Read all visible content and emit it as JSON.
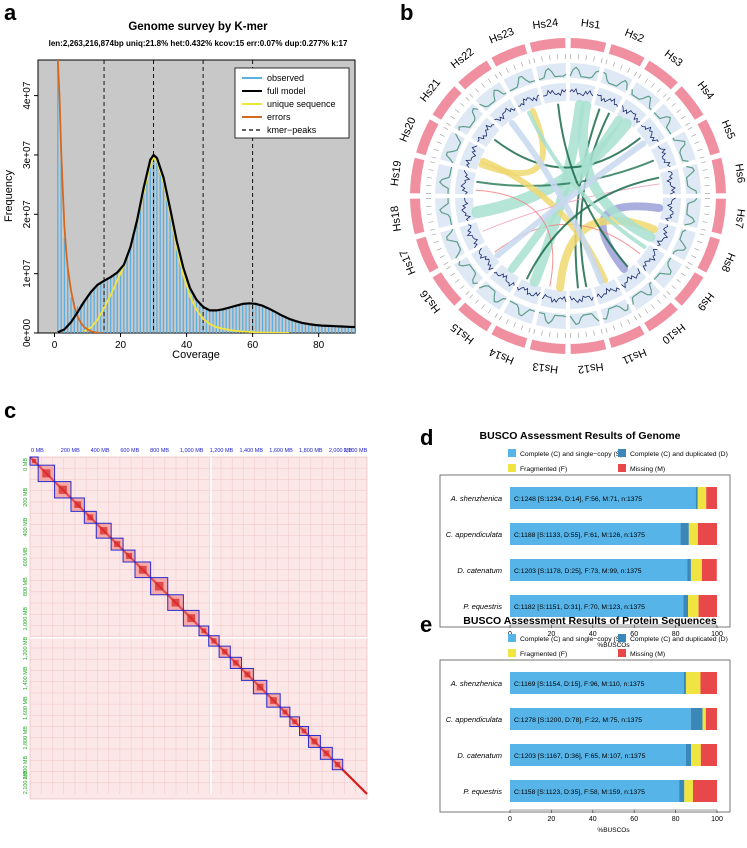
{
  "panel_labels": [
    "a",
    "b",
    "c",
    "d",
    "e"
  ],
  "colors": {
    "observed": "#5aaee0",
    "full_model": "#000000",
    "unique": "#f2e53a",
    "errors": "#d2691e",
    "plot_bg": "#c8c8c8",
    "busco_s": "#56b4e9",
    "busco_d": "#3a87b8",
    "busco_f": "#f0e442",
    "busco_m": "#e8484a",
    "ideogram": "#f08fa0",
    "track": "#dfe9f5",
    "hic_blue": "#2a2acc",
    "hic_axis_top": "#2222cc",
    "hic_axis_left": "#22aa22"
  },
  "chart_data": [
    {
      "id": "kmer",
      "type": "line",
      "title": "Genome survey by K-mer",
      "subtitle": "len:2,263,216,874bp uniq:21.8%  het:0.432% kcov:15 err:0.07%  dup:0.277%  k:17",
      "xlabel": "Coverage",
      "ylabel": "Frequency",
      "xlim": [
        -5,
        91
      ],
      "ylim": [
        0,
        46000000.0
      ],
      "xticks": [
        0,
        20,
        40,
        60,
        80
      ],
      "yticks": [
        0,
        10000000.0,
        20000000.0,
        30000000.0,
        40000000.0
      ],
      "ytick_labels": [
        "0e+00",
        "1e+07",
        "2e+07",
        "3e+07",
        "4e+07"
      ],
      "legend_position": "top-right",
      "legend": [
        "observed",
        "full model",
        "unique sequence",
        "errors",
        "kmer−peaks"
      ],
      "kmer_peaks": [
        15,
        30,
        45,
        60
      ],
      "series": [
        {
          "name": "full model",
          "x": [
            1,
            3,
            5,
            7,
            9,
            11,
            13,
            15,
            17,
            19,
            21,
            23,
            25,
            27,
            29,
            30,
            31,
            33,
            35,
            37,
            39,
            41,
            43,
            45,
            47,
            49,
            51,
            53,
            55,
            57,
            59,
            61,
            63,
            65,
            67,
            69,
            71,
            73,
            75,
            77,
            79,
            81,
            83,
            85,
            87,
            89,
            91
          ],
          "values": [
            100000.0,
            600000.0,
            1800000.0,
            3500000.0,
            5300000.0,
            6900000.0,
            8100000.0,
            8800000.0,
            9400000.0,
            10200000.0,
            11500000.0,
            14500000.0,
            19000000.0,
            24500000.0,
            29200000.0,
            30000000.0,
            29500000.0,
            26200000.0,
            21000000.0,
            15500000.0,
            11000000.0,
            7600000.0,
            5600000.0,
            4400000.0,
            3800000.0,
            3800000.0,
            4000000.0,
            4300000.0,
            4600000.0,
            4900000.0,
            5000000.0,
            4900000.0,
            4600000.0,
            4100000.0,
            3500000.0,
            2900000.0,
            2400000.0,
            2000000.0,
            1700000.0,
            1500000.0,
            1350000.0,
            1250000.0,
            1200000.0,
            1150000.0,
            1100000.0,
            1050000.0,
            1000000.0
          ]
        },
        {
          "name": "unique sequence",
          "x": [
            9,
            11,
            13,
            15,
            17,
            19,
            21,
            23,
            25,
            27,
            29,
            30,
            31,
            33,
            35,
            37,
            39,
            41,
            43,
            45,
            47,
            49,
            51,
            53,
            55,
            57,
            59,
            61,
            63,
            65,
            67,
            69,
            71
          ],
          "values": [
            300000.0,
            900000.0,
            2200000.0,
            4200000.0,
            6400000.0,
            8800000.0,
            11300000.0,
            14600000.0,
            18800000.0,
            23800000.0,
            28400000.0,
            29500000.0,
            29000000.0,
            25500000.0,
            20200000.0,
            14500000.0,
            9800000.0,
            6300000.0,
            3900000.0,
            2400000.0,
            1500000.0,
            1000000.0,
            700000.0,
            500000.0,
            350000.0,
            250000.0,
            180000.0,
            120000.0,
            80000.0,
            50000.0,
            30000.0,
            20000.0,
            10000.0
          ]
        },
        {
          "name": "errors",
          "x": [
            1,
            1.5,
            2,
            2.5,
            3,
            3.5,
            4,
            5,
            6,
            7,
            8,
            9,
            10,
            11,
            12,
            13,
            14
          ],
          "values": [
            46000000.0,
            40000000.0,
            31000000.0,
            24000000.0,
            18000000.0,
            14000000.0,
            11000000.0,
            7200000.0,
            4500000.0,
            2800000.0,
            1700000.0,
            1000000.0,
            600000.0,
            300000.0,
            150000.0,
            60000.0,
            20000.0
          ]
        },
        {
          "name": "observed",
          "x": [
            1,
            3,
            5,
            7,
            9,
            11,
            13,
            15,
            17,
            19,
            21,
            23,
            25,
            27,
            29,
            30,
            31,
            33,
            35,
            37,
            39,
            41,
            43,
            45,
            47,
            49,
            51,
            53,
            55,
            57,
            59,
            61,
            63,
            65,
            67,
            69,
            71,
            73,
            75,
            77,
            79,
            81,
            83,
            85,
            87,
            89,
            91
          ],
          "values": [
            46000000.0,
            16000000.0,
            6000000.0,
            4500000.0,
            5300000.0,
            6900000.0,
            8100000.0,
            8800000.0,
            9400000.0,
            10200000.0,
            11500000.0,
            14500000.0,
            19000000.0,
            24500000.0,
            29200000.0,
            30000000.0,
            29500000.0,
            26200000.0,
            21000000.0,
            15500000.0,
            11000000.0,
            7600000.0,
            5600000.0,
            4400000.0,
            3800000.0,
            3800000.0,
            4000000.0,
            4300000.0,
            4600000.0,
            4900000.0,
            5000000.0,
            4900000.0,
            4600000.0,
            4100000.0,
            3500000.0,
            2900000.0,
            2400000.0,
            2000000.0,
            1700000.0,
            1500000.0,
            1350000.0,
            1250000.0,
            1200000.0,
            1150000.0,
            1100000.0,
            1050000.0,
            1000000.0
          ]
        }
      ]
    },
    {
      "id": "circos",
      "type": "chord",
      "chromosomes": [
        "Hs1",
        "Hs2",
        "Hs3",
        "Hs4",
        "Hs5",
        "Hs6",
        "Hs7",
        "Hs8",
        "Hs9",
        "Hs10",
        "Hs11",
        "Hs12",
        "Hs13",
        "Hs14",
        "Hs15",
        "Hs16",
        "Hs17",
        "Hs18",
        "Hs19",
        "Hs20",
        "Hs21",
        "Hs22",
        "Hs23",
        "Hs24"
      ],
      "links": [
        {
          "from": [
            0,
            0.5
          ],
          "to": [
            13,
            0.4
          ],
          "color": "#a8e0d0",
          "width": 10
        },
        {
          "from": [
            1,
            0.3
          ],
          "to": [
            11,
            0.6
          ],
          "color": "#1a6b4a",
          "width": 2
        },
        {
          "from": [
            2,
            0.6
          ],
          "to": [
            17,
            0.3
          ],
          "color": "#a8e0d0",
          "width": 12
        },
        {
          "from": [
            3,
            0.4
          ],
          "to": [
            20,
            0.5
          ],
          "color": "#1a6b4a",
          "width": 2
        },
        {
          "from": [
            4,
            0.5
          ],
          "to": [
            18,
            0.6
          ],
          "color": "#2e7d5b",
          "width": 2
        },
        {
          "from": [
            6,
            0.5
          ],
          "to": [
            9,
            0.5
          ],
          "color": "#9aa0d8",
          "width": 8
        },
        {
          "from": [
            7,
            0.4
          ],
          "to": [
            12,
            0.3
          ],
          "color": "#f0d870",
          "width": 8
        },
        {
          "from": [
            8,
            0.6
          ],
          "to": [
            15,
            0.5
          ],
          "color": "#f08080",
          "width": 1
        },
        {
          "from": [
            10,
            0.4
          ],
          "to": [
            19,
            0.5
          ],
          "color": "#f0d870",
          "width": 6
        },
        {
          "from": [
            11,
            0.2
          ],
          "to": [
            1,
            0.8
          ],
          "color": "#1a6b4a",
          "width": 2
        },
        {
          "from": [
            14,
            0.5
          ],
          "to": [
            2,
            0.2
          ],
          "color": "#a8e0d0",
          "width": 8
        },
        {
          "from": [
            16,
            0.5
          ],
          "to": [
            5,
            0.5
          ],
          "color": "#f0a0c0",
          "width": 1
        },
        {
          "from": [
            19,
            0.3
          ],
          "to": [
            22,
            0.5
          ],
          "color": "#f0d870",
          "width": 6
        },
        {
          "from": [
            21,
            0.5
          ],
          "to": [
            10,
            0.6
          ],
          "color": "#c8d8f0",
          "width": 6
        },
        {
          "from": [
            23,
            0.6
          ],
          "to": [
            9,
            0.3
          ],
          "color": "#1a6b4a",
          "width": 2
        },
        {
          "from": [
            0,
            0.8
          ],
          "to": [
            7,
            0.8
          ],
          "color": "#a8e0d0",
          "width": 10
        },
        {
          "from": [
            15,
            0.3
          ],
          "to": [
            3,
            0.7
          ],
          "color": "#c8d8f0",
          "width": 6
        },
        {
          "from": [
            18,
            0.2
          ],
          "to": [
            12,
            0.8
          ],
          "color": "#f08080",
          "width": 1
        },
        {
          "from": [
            5,
            0.2
          ],
          "to": [
            13,
            0.8
          ],
          "color": "#1a6b4a",
          "width": 2
        },
        {
          "from": [
            22,
            0.3
          ],
          "to": [
            8,
            0.2
          ],
          "color": "#a8e0d0",
          "width": 4
        }
      ]
    },
    {
      "id": "hic",
      "type": "heatmap",
      "axis_labels": [
        "0 MB",
        "200 MB",
        "400 MB",
        "600 MB",
        "800 MB",
        "1,000 MB",
        "1,200 MB",
        "1,400 MB",
        "1,600 MB",
        "1,800 MB",
        "2,000 MB",
        "2,100 MB"
      ],
      "axis_values": [
        0,
        200,
        400,
        600,
        800,
        1000,
        1200,
        1400,
        1600,
        1800,
        2000,
        2100
      ],
      "max_mb": 2263,
      "blocks_mb": [
        [
          0,
          55
        ],
        [
          55,
          165
        ],
        [
          165,
          275
        ],
        [
          275,
          365
        ],
        [
          365,
          445
        ],
        [
          445,
          545
        ],
        [
          545,
          625
        ],
        [
          625,
          705
        ],
        [
          705,
          810
        ],
        [
          810,
          925
        ],
        [
          925,
          1030
        ],
        [
          1030,
          1135
        ],
        [
          1135,
          1200
        ],
        [
          1200,
          1270
        ],
        [
          1270,
          1345
        ],
        [
          1345,
          1420
        ],
        [
          1420,
          1500
        ],
        [
          1500,
          1590
        ],
        [
          1590,
          1680
        ],
        [
          1680,
          1745
        ],
        [
          1745,
          1810
        ],
        [
          1810,
          1870
        ],
        [
          1870,
          1950
        ],
        [
          1950,
          2030
        ],
        [
          2030,
          2100
        ]
      ]
    },
    {
      "id": "busco_genome",
      "type": "bar",
      "title": "BUSCO Assessment Results of Genome",
      "xlabel": "%BUSCOs",
      "xlim": [
        0,
        100
      ],
      "xticks": [
        0,
        20,
        40,
        60,
        80,
        100
      ],
      "legend": [
        "Complete (C) and single−copy (S)",
        "Complete (C) and duplicated (D)",
        "Fragmented (F)",
        "Missing (M)"
      ],
      "categories": [
        "A. shenzhenica",
        "C. appendiculata",
        "D. catenatum",
        "P. equestris"
      ],
      "series": [
        {
          "name": "Complete (C) and single−copy (S)",
          "values": [
            89.7,
            82.4,
            85.6,
            83.7
          ]
        },
        {
          "name": "Complete (C) and duplicated (D)",
          "values": [
            1.0,
            4.0,
            1.8,
            2.3
          ]
        },
        {
          "name": "Fragmented (F)",
          "values": [
            4.1,
            4.4,
            5.3,
            5.1
          ]
        },
        {
          "name": "Missing (M)",
          "values": [
            5.2,
            9.2,
            7.2,
            8.9
          ]
        }
      ],
      "bar_labels": [
        "C:1248 [S:1234, D:14], F:56, M:71, n:1375",
        "C:1188 [S:1133, D:55], F:61, M:126, n:1375",
        "C:1203 [S:1178, D:25], F:73, M:99, n:1375",
        "C:1182 [S:1151, D:31], F:70, M:123, n:1375"
      ]
    },
    {
      "id": "busco_protein",
      "type": "bar",
      "title": "BUSCO Assessment Results of Protein Sequences",
      "xlabel": "%BUSCOs",
      "xlim": [
        0,
        100
      ],
      "xticks": [
        0,
        20,
        40,
        60,
        80,
        100
      ],
      "legend": [
        "Complete (C) and single−copy (S)",
        "Complete (C) and duplicated (D)",
        "Fragmented (F)",
        "Missing (M)"
      ],
      "categories": [
        "A. shenzhenica",
        "C. appendiculata",
        "D. catenatum",
        "P. equestris"
      ],
      "series": [
        {
          "name": "Complete (C) and single−copy (S)",
          "values": [
            83.9,
            87.3,
            84.9,
            81.7
          ]
        },
        {
          "name": "Complete (C) and duplicated (D)",
          "values": [
            1.1,
            5.7,
            2.6,
            2.5
          ]
        },
        {
          "name": "Fragmented (F)",
          "values": [
            7.0,
            1.6,
            4.7,
            4.2
          ]
        },
        {
          "name": "Missing (M)",
          "values": [
            8.0,
            5.4,
            7.8,
            11.6
          ]
        }
      ],
      "bar_labels": [
        "C:1169 [S:1154, D:15], F:96, M:110, n:1375",
        "C:1278 [S:1200, D:78], F:22, M:75, n:1375",
        "C:1203 [S:1167, D:36], F:65, M:107, n:1375",
        "C:1158 [S:1123, D:35], F:58, M:159, n:1375"
      ]
    }
  ]
}
